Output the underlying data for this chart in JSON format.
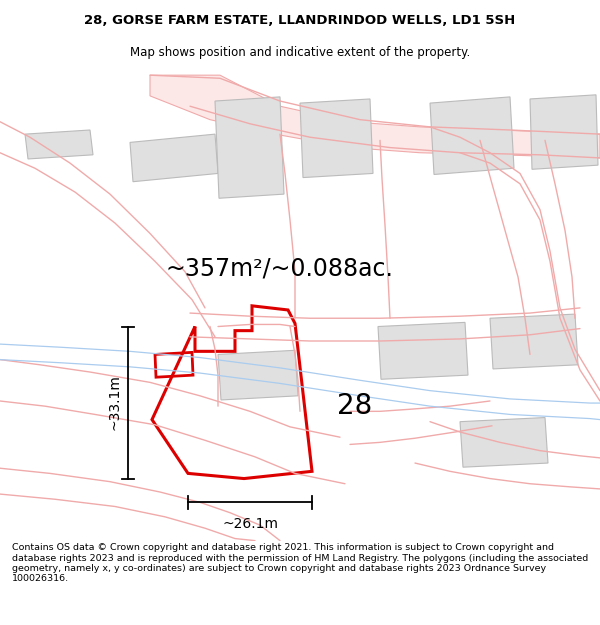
{
  "title_line1": "28, GORSE FARM ESTATE, LLANDRINDOD WELLS, LD1 5SH",
  "title_line2": "Map shows position and indicative extent of the property.",
  "area_text": "~357m²/~0.088ac.",
  "dim_width": "~26.1m",
  "dim_height": "~33.1m",
  "plot_number": "28",
  "footer_text": "Contains OS data © Crown copyright and database right 2021. This information is subject to Crown copyright and database rights 2023 and is reproduced with the permission of HM Land Registry. The polygons (including the associated geometry, namely x, y co-ordinates) are subject to Crown copyright and database rights 2023 Ordnance Survey 100026316.",
  "bg_color": "#ffffff",
  "map_bg_color": "#ffffff",
  "road_color": "#f0aaaa",
  "road_fill_color": "#fde8e8",
  "plot_color": "#dd0000",
  "building_color": "#e0e0e0",
  "building_edge_color": "#bbbbbb",
  "blue_color": "#aaccee",
  "dim_color": "#000000",
  "text_color": "#000000",
  "title_fontsize": 9.5,
  "subtitle_fontsize": 8.5,
  "area_fontsize": 17,
  "plot_num_fontsize": 20,
  "dim_fontsize": 10,
  "footer_fontsize": 6.8
}
